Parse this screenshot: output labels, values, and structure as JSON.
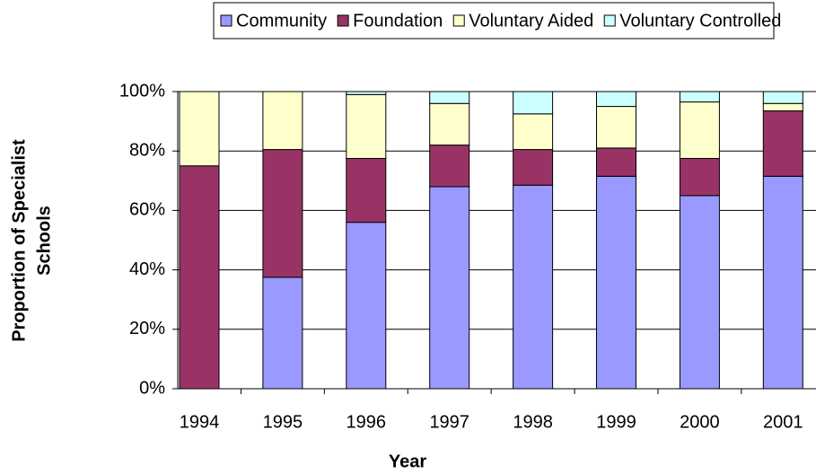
{
  "chart_data": {
    "type": "stacked_bar",
    "x_label": "Year",
    "y_label": [
      "Proportion of Specialist",
      "Schools"
    ],
    "categories": [
      "1994",
      "1995",
      "1996",
      "1997",
      "1998",
      "1999",
      "2000",
      "2001"
    ],
    "series": [
      {
        "name": "Community",
        "color": "#9999ff",
        "values": [
          0,
          37.5,
          56,
          68,
          68.5,
          71.5,
          65,
          71.5
        ]
      },
      {
        "name": "Foundation",
        "color": "#993366",
        "values": [
          75,
          43,
          21.5,
          14,
          12,
          9.5,
          12.5,
          22
        ]
      },
      {
        "name": "Voluntary Aided",
        "color": "#ffffcc",
        "values": [
          25,
          19.5,
          21.5,
          14,
          12,
          14,
          19,
          2.5
        ]
      },
      {
        "name": "Voluntary Controlled",
        "color": "#ccffff",
        "values": [
          0,
          0,
          1,
          4,
          7.5,
          5,
          3.5,
          4
        ]
      }
    ],
    "ylim": [
      0,
      100
    ],
    "yticks": [
      {
        "value": 0,
        "label": "0%"
      },
      {
        "value": 20,
        "label": "20%"
      },
      {
        "value": 40,
        "label": "40%"
      },
      {
        "value": 60,
        "label": "60%"
      },
      {
        "value": 80,
        "label": "80%"
      },
      {
        "value": 100,
        "label": "100%"
      }
    ],
    "grid": true,
    "legend": "top"
  }
}
